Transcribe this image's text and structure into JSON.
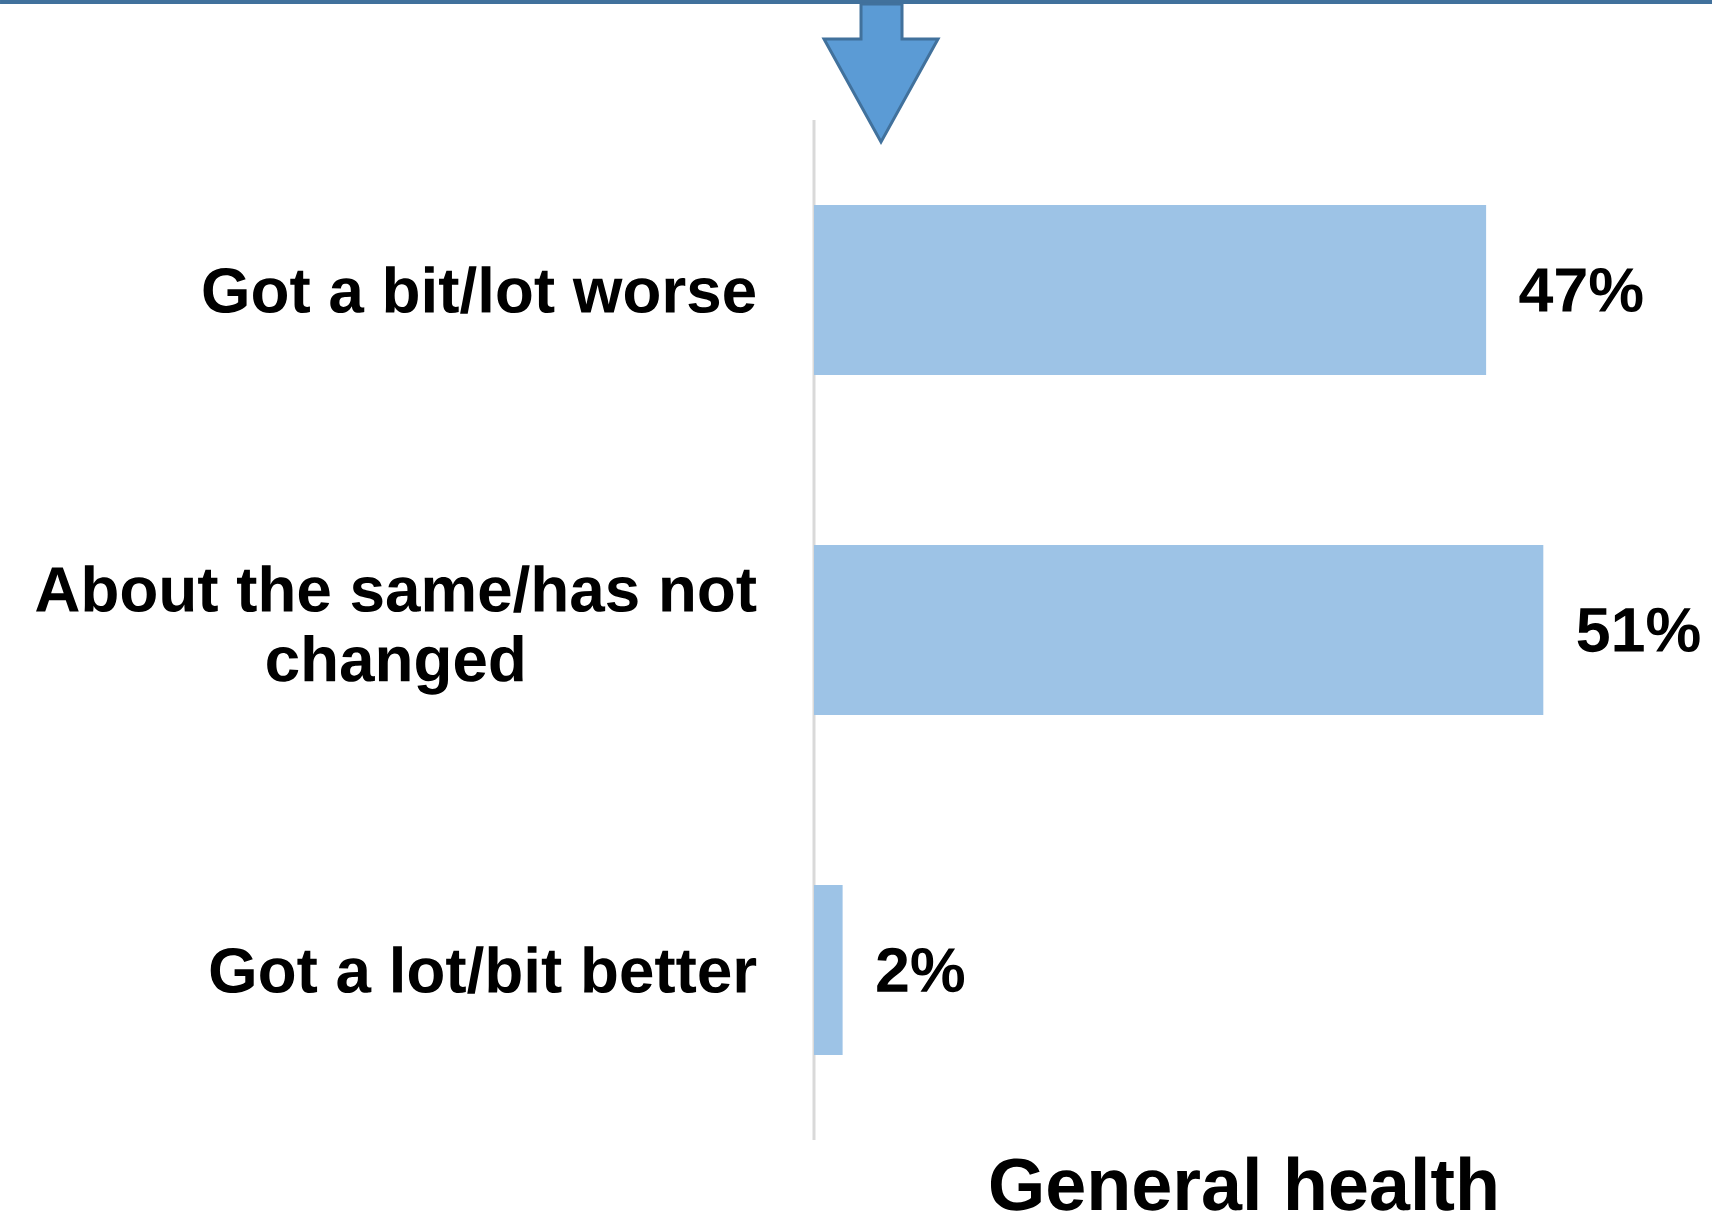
{
  "chart_data": {
    "type": "bar",
    "orientation": "horizontal",
    "categories": [
      "Got a bit/lot worse",
      "About the same/has not changed",
      "Got a lot/bit better"
    ],
    "values": [
      47,
      51,
      2
    ],
    "value_labels": [
      "47%",
      "51%",
      "2%"
    ],
    "color": "#9dc3e6",
    "xlabel": "General health",
    "tick_labels": "y"
  }
}
